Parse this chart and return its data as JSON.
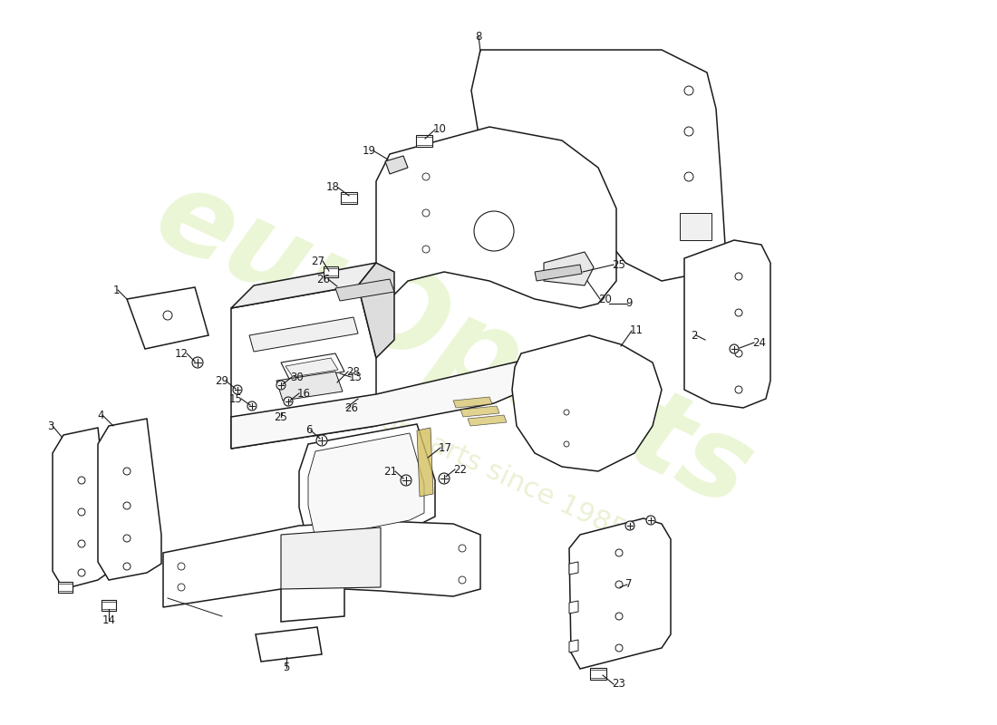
{
  "bg_color": "#ffffff",
  "line_color": "#1a1a1a",
  "wm_color": "#c8e890",
  "wm_color2": "#c8dc90"
}
